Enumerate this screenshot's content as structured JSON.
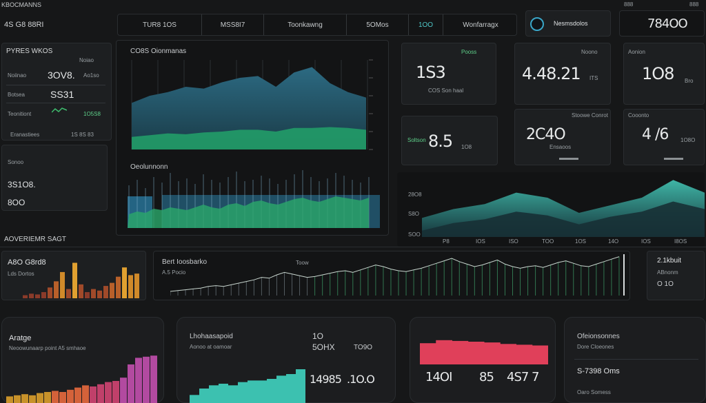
{
  "app": {
    "title": "KBOCMANNS"
  },
  "header": {
    "left_label": "4S G8 88RI",
    "tabs": [
      {
        "label": "TUR8 1OS"
      },
      {
        "label": "MSS8I7"
      },
      {
        "label": "Toonkawng"
      },
      {
        "label": "5OMos"
      },
      {
        "label": "1OO"
      },
      {
        "label": "Wonfarragx"
      }
    ],
    "account_label": "Nesmsdolos",
    "top_right_small": [
      "888",
      "888"
    ],
    "top_right_value": "784OO"
  },
  "left_card": {
    "title": "PYRES WKOS",
    "subtitle": "Noiao",
    "rows": [
      {
        "label": "Noiinao",
        "value": "3OV8.",
        "extra": "Ao1so"
      },
      {
        "label": "Botsea",
        "value": "SS31",
        "extra": ""
      },
      {
        "label": "Teonitiont",
        "value": "",
        "extra": "1O5S8"
      }
    ],
    "footer_label": "Eranastiees",
    "footer_value": "1S 8S 83"
  },
  "left_card2": {
    "label": "Sonoo",
    "value1": "3S1O8.",
    "value2": "8OO"
  },
  "chart_panel": {
    "title": "CO8S Oionmanas",
    "chart_data": {
      "type": "area",
      "x": [
        1,
        2,
        3,
        4,
        5,
        6,
        7,
        8,
        9,
        10,
        11,
        12,
        13,
        14
      ],
      "series": [
        {
          "values": [
            52,
            60,
            64,
            70,
            68,
            75,
            80,
            82,
            70,
            86,
            92,
            74,
            64,
            58
          ]
        },
        {
          "values": [
            14,
            16,
            18,
            17,
            19,
            20,
            22,
            22,
            20,
            24,
            24,
            25,
            24,
            22
          ]
        }
      ],
      "ylim": [
        0,
        100
      ]
    },
    "lower_title": "Oeolunnonn",
    "lower_chart": {
      "type": "bar",
      "values": [
        62,
        70,
        58,
        74,
        66,
        80,
        68,
        72,
        64,
        78,
        70,
        66,
        74,
        82,
        68,
        70,
        76,
        72,
        64,
        70,
        78,
        84,
        74,
        68,
        72,
        80,
        76,
        70,
        66,
        74
      ],
      "green": [
        20,
        24,
        22,
        28,
        26,
        30,
        28,
        26,
        30,
        34,
        30,
        28,
        34,
        36,
        32,
        38,
        40,
        36,
        34,
        38,
        42,
        44,
        40,
        38,
        42,
        46,
        44,
        42,
        40,
        44
      ]
    }
  },
  "stat_cards": [
    {
      "label": "Pooss",
      "value": "1S3",
      "caption": "COS Son haal"
    },
    {
      "label": "Noono",
      "value": "4.48.21",
      "caption": "ITS"
    },
    {
      "label": "Aonion",
      "value": "1O8",
      "caption": "Bro"
    },
    {
      "label": "Soltson",
      "value": "8.5",
      "caption": "1O8"
    },
    {
      "label": "Stoowe Conrot",
      "value": "2C4O",
      "caption": "Ensaoos"
    },
    {
      "label": "Cooonto",
      "value": "4 /6",
      "caption": "1O8O"
    }
  ],
  "right_chart": {
    "axis_top": "28O8",
    "axis_mid": "S8O",
    "axis_bot": "SOO",
    "ticks": [
      "P8",
      "IOS",
      "ISO",
      "TOO",
      "1OS",
      "14O",
      "IOS",
      "I8OS"
    ],
    "chart_data": {
      "type": "area",
      "x": [
        1,
        2,
        3,
        4,
        5,
        6,
        7,
        8,
        9,
        10
      ],
      "series": [
        {
          "values": [
            30,
            44,
            52,
            70,
            62,
            38,
            50,
            62,
            90,
            70
          ]
        },
        {
          "values": [
            10,
            22,
            28,
            40,
            34,
            20,
            32,
            40,
            56,
            44
          ]
        }
      ],
      "ylim": [
        0,
        100
      ]
    }
  },
  "section2": {
    "title": "AOVERIEMR SAGT"
  },
  "bar_card": {
    "title": "A8O G8rd8",
    "subtitle": "Lds Dortos",
    "chart_data": {
      "type": "bar",
      "values": [
        4,
        6,
        5,
        8,
        14,
        22,
        34,
        12,
        46,
        18,
        8,
        12,
        10,
        16,
        20,
        28,
        40,
        30,
        32
      ],
      "ylim": [
        0,
        50
      ]
    }
  },
  "wide_chart": {
    "title": "Bert Ioosbarko",
    "subtitle": "A.5 Pocio",
    "label2": "Toow",
    "chart_data": {
      "type": "bar",
      "values": [
        10,
        12,
        14,
        16,
        18,
        22,
        24,
        22,
        26,
        30,
        34,
        38,
        44,
        42,
        50,
        56,
        52,
        48,
        44,
        46,
        50,
        54,
        58,
        60,
        56,
        62,
        68,
        74,
        70,
        64,
        60,
        58,
        62,
        66,
        72,
        78,
        84,
        90,
        82,
        76,
        70,
        74,
        80,
        86,
        76,
        70,
        66,
        70,
        72,
        68,
        74,
        80,
        84,
        78,
        72,
        70,
        76,
        82,
        88,
        94
      ]
    }
  },
  "wide_side": {
    "value": "2.1kbuit",
    "caption": "ABnonm",
    "small": "O 1O"
  },
  "bottom_cards": [
    {
      "title": "Aratge",
      "subtitle": "Neoowunaarp point A5 smhaoe",
      "chart_data": {
        "type": "bar",
        "values": [
          12,
          14,
          16,
          14,
          18,
          20,
          22,
          20,
          24,
          28,
          32,
          30,
          34,
          38,
          40,
          46,
          70,
          82,
          84,
          86
        ],
        "ylim": [
          0,
          100
        ]
      }
    },
    {
      "title": "Lhohaasapoid",
      "subtitle": "Aonoo at oamoar",
      "value1": "1O",
      "value2": "5OHX",
      "value3": "TO9O",
      "value4": "14985",
      "value5": ".1O.O",
      "chart_data": {
        "type": "bar",
        "values": [
          10,
          18,
          22,
          24,
          22,
          26,
          28,
          28,
          30,
          34,
          36,
          42
        ],
        "ylim": [
          0,
          60
        ]
      }
    },
    {
      "values": [
        "14OI",
        "85",
        "4S7 7"
      ],
      "chart_data": {
        "type": "bar",
        "values": [
          56,
          64,
          62,
          60,
          58,
          54,
          52,
          50
        ],
        "ylim": [
          0,
          80
        ]
      }
    },
    {
      "title": "Ofeionsonnes",
      "subtitle": "Dore Cloeones",
      "value": "S-7398 Oms",
      "footer": "Oaro Somess"
    }
  ]
}
